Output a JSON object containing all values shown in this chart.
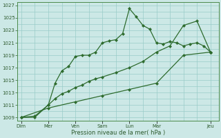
{
  "xlabel": "Pression niveau de la mer( hPa )",
  "background_color": "#cce8e6",
  "grid_color": "#99ccc8",
  "line_color": "#2d6b2d",
  "ylim": [
    1008.5,
    1027.5
  ],
  "yticks": [
    1009,
    1011,
    1013,
    1015,
    1017,
    1019,
    1021,
    1023,
    1025,
    1027
  ],
  "major_xtick_labels": [
    "Dim",
    "Mer",
    "Ven",
    "Sam",
    "Lun",
    "Mar",
    "Jeu"
  ],
  "major_xtick_positions": [
    0,
    1,
    2,
    3,
    4,
    5,
    7
  ],
  "xlim": [
    -0.15,
    7.3
  ],
  "line1_x": [
    0,
    0.5,
    1,
    1.25,
    1.5,
    1.75,
    2,
    2.25,
    2.5,
    2.75,
    3,
    3.25,
    3.5,
    3.75,
    4,
    4.25,
    4.5,
    4.75,
    5,
    5.25,
    5.5,
    5.75,
    6,
    6.25,
    6.5,
    6.75,
    7
  ],
  "line1_y": [
    1009.0,
    1009.0,
    1011.0,
    1014.5,
    1016.5,
    1017.2,
    1018.8,
    1019.0,
    1019.0,
    1019.5,
    1021.0,
    1021.3,
    1021.5,
    1022.5,
    1026.5,
    1025.2,
    1023.8,
    1023.2,
    1021.0,
    1020.8,
    1021.2,
    1021.0,
    1020.5,
    1020.8,
    1021.0,
    1020.5,
    1019.5
  ],
  "line2_x": [
    0,
    0.5,
    1,
    1.25,
    1.5,
    1.75,
    2,
    2.25,
    2.5,
    2.75,
    3,
    3.5,
    4,
    4.5,
    5,
    5.5,
    6,
    6.5,
    7
  ],
  "line2_y": [
    1009.0,
    1009.2,
    1011.0,
    1012.0,
    1012.8,
    1013.2,
    1013.8,
    1014.2,
    1014.8,
    1015.2,
    1015.5,
    1016.2,
    1017.0,
    1018.0,
    1019.5,
    1020.5,
    1023.8,
    1024.5,
    1019.5
  ],
  "line3_x": [
    0,
    1,
    2,
    3,
    4,
    5,
    6,
    7
  ],
  "line3_y": [
    1009.0,
    1010.5,
    1011.5,
    1012.5,
    1013.5,
    1014.5,
    1019.0,
    1019.5
  ]
}
